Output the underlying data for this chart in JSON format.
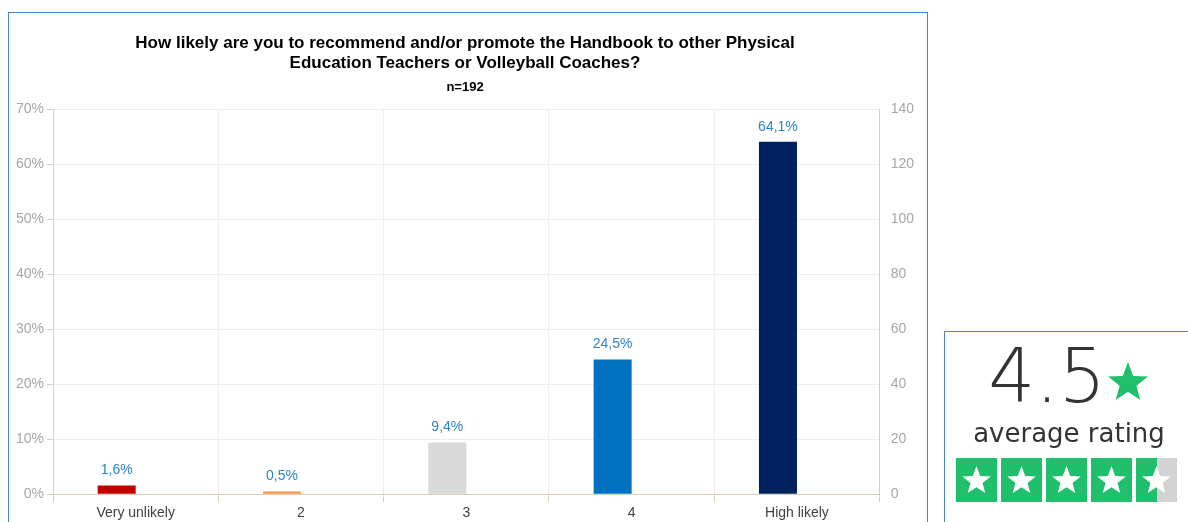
{
  "chart_data": [
    {
      "type": "bar",
      "title": [
        "How likely are you to recommend and/or promote the Handbook to other Physical",
        "Education Teachers or Volleyball Coaches?"
      ],
      "subtitle": "n=192",
      "categories": [
        "Very unlikely",
        "2",
        "3",
        "4",
        "High likely"
      ],
      "values": [
        1.6,
        0.5,
        9.4,
        24.5,
        64.1
      ],
      "colors": [
        "#c00000",
        "#f79646",
        "#d9d9d9",
        "#0070c0",
        "#002060"
      ],
      "value_labels": [
        "1,6%",
        "0,5%",
        "9,4%",
        "24,5%",
        "64,1%"
      ],
      "ylim": [
        0,
        70
      ],
      "yticks": [
        {
          "value": 0,
          "label": "0%"
        },
        {
          "value": 10,
          "label": "10%"
        },
        {
          "value": 20,
          "label": "20%"
        },
        {
          "value": 30,
          "label": "30%"
        },
        {
          "value": 40,
          "label": "40%"
        },
        {
          "value": 50,
          "label": "50%"
        },
        {
          "value": 60,
          "label": "60%"
        },
        {
          "value": 70,
          "label": "70%"
        }
      ],
      "y2lim": [
        0,
        140
      ],
      "y2ticks": [
        0,
        20,
        40,
        60,
        80,
        100,
        120,
        140
      ],
      "grid": true,
      "legend": false
    },
    {
      "type": "other",
      "annotations": [
        "4.5",
        "average rating"
      ]
    }
  ]
}
